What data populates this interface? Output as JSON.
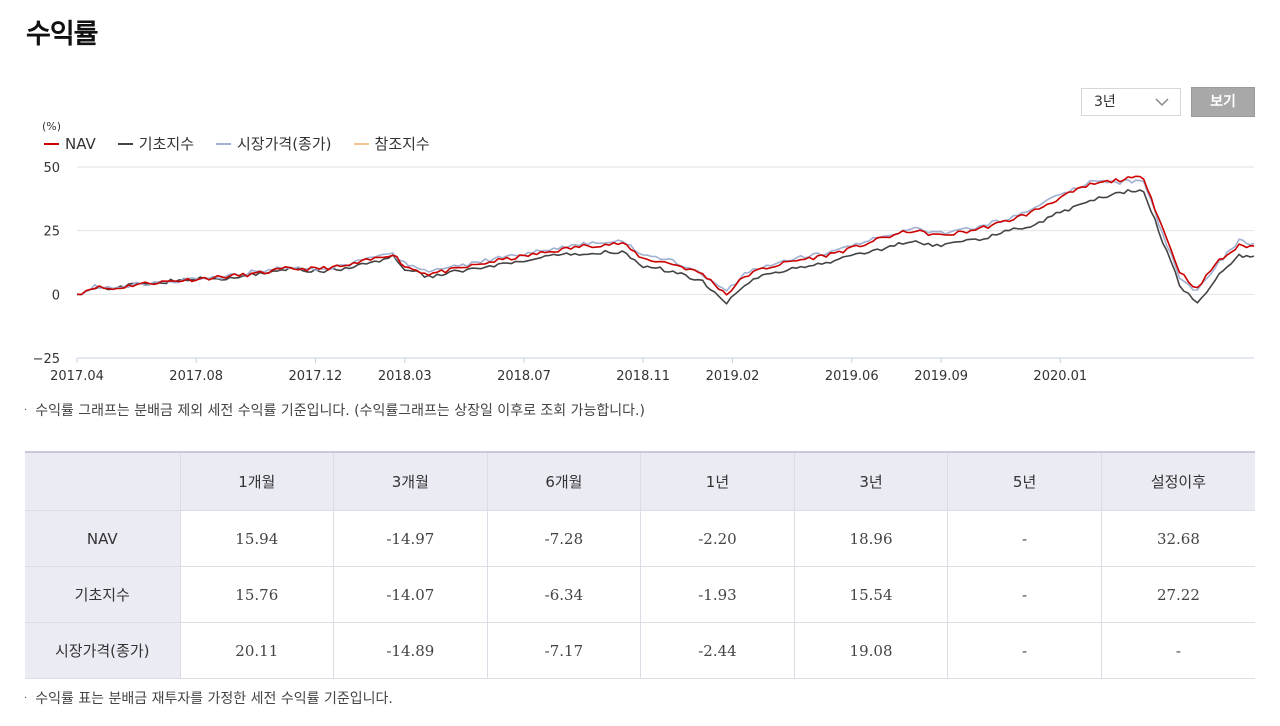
{
  "page": {
    "title": "수익률"
  },
  "controls": {
    "period_value": "3년",
    "view_button": "보기"
  },
  "notes": {
    "graph_note": "수익률 그래프는 분배금 제외 세전 수익률 기준입니다. (수익률그래프는 상장일 이후로 조회 가능합니다.)",
    "table_note": "수익률 표는 분배금 재투자를 가정한 세전 수익률 기준입니다."
  },
  "chart_data": {
    "type": "line",
    "unit_label": "(%)",
    "ylim": [
      -25,
      50
    ],
    "y_ticks": [
      "50",
      "25",
      "0",
      "-25"
    ],
    "x_ticks": [
      "2017.04",
      "2017.08",
      "2017.12",
      "2018.03",
      "2018.07",
      "2018.11",
      "2019.02",
      "2019.06",
      "2019.09",
      "2020.01"
    ],
    "x_tick_months": [
      0,
      4,
      8,
      11,
      15,
      19,
      22,
      26,
      29,
      33
    ],
    "x_range_months": [
      0,
      39.5
    ],
    "grid": true,
    "legend_position": "top-left",
    "series": [
      {
        "name": "NAV",
        "color": "#cc0000",
        "points": [
          [
            0,
            0
          ],
          [
            0.6,
            3
          ],
          [
            1.2,
            2
          ],
          [
            2,
            4
          ],
          [
            3,
            5
          ],
          [
            4,
            6
          ],
          [
            5,
            7
          ],
          [
            6,
            8
          ],
          [
            7,
            10
          ],
          [
            8,
            10
          ],
          [
            9,
            11
          ],
          [
            10,
            14
          ],
          [
            10.6,
            16
          ],
          [
            11,
            11
          ],
          [
            11.8,
            8
          ],
          [
            12.8,
            10
          ],
          [
            14,
            13
          ],
          [
            15,
            15
          ],
          [
            16,
            17
          ],
          [
            17,
            19
          ],
          [
            18.3,
            20
          ],
          [
            19,
            14
          ],
          [
            20,
            12
          ],
          [
            21,
            8
          ],
          [
            21.8,
            0
          ],
          [
            22.4,
            7
          ],
          [
            23,
            10
          ],
          [
            24,
            13
          ],
          [
            25,
            15
          ],
          [
            26,
            18
          ],
          [
            27,
            22
          ],
          [
            28,
            25
          ],
          [
            29,
            23
          ],
          [
            30,
            25
          ],
          [
            31,
            28
          ],
          [
            32,
            32
          ],
          [
            33,
            38
          ],
          [
            34,
            43
          ],
          [
            35,
            45
          ],
          [
            35.8,
            46
          ],
          [
            36.3,
            30
          ],
          [
            37,
            9
          ],
          [
            37.6,
            2
          ],
          [
            38.2,
            12
          ],
          [
            39,
            19
          ],
          [
            39.5,
            19
          ]
        ]
      },
      {
        "name": "기초지수",
        "color": "#444444",
        "points": [
          [
            0,
            0
          ],
          [
            0.6,
            3
          ],
          [
            1.2,
            2
          ],
          [
            2,
            4
          ],
          [
            3,
            5
          ],
          [
            4,
            6
          ],
          [
            5,
            6
          ],
          [
            6,
            8
          ],
          [
            7,
            10
          ],
          [
            8,
            9
          ],
          [
            9,
            10
          ],
          [
            10,
            13
          ],
          [
            10.6,
            15
          ],
          [
            11,
            10
          ],
          [
            11.8,
            7
          ],
          [
            12.8,
            9
          ],
          [
            14,
            11
          ],
          [
            15,
            13
          ],
          [
            16,
            15
          ],
          [
            17,
            16
          ],
          [
            18.3,
            17
          ],
          [
            19,
            11
          ],
          [
            20,
            9
          ],
          [
            21,
            5
          ],
          [
            21.8,
            -3
          ],
          [
            22.4,
            4
          ],
          [
            23,
            7
          ],
          [
            24,
            10
          ],
          [
            25,
            12
          ],
          [
            26,
            15
          ],
          [
            27,
            18
          ],
          [
            28,
            21
          ],
          [
            29,
            19
          ],
          [
            30,
            21
          ],
          [
            31,
            24
          ],
          [
            32,
            27
          ],
          [
            33,
            32
          ],
          [
            34,
            37
          ],
          [
            35,
            40
          ],
          [
            35.8,
            41
          ],
          [
            36.3,
            25
          ],
          [
            37,
            4
          ],
          [
            37.6,
            -4
          ],
          [
            38.2,
            6
          ],
          [
            39,
            15
          ],
          [
            39.5,
            15
          ]
        ]
      },
      {
        "name": "시장가격(종가)",
        "color": "#9fb0d0",
        "points": [
          [
            0,
            0
          ],
          [
            0.6,
            3
          ],
          [
            1.2,
            2
          ],
          [
            2,
            4
          ],
          [
            3,
            5
          ],
          [
            4,
            6
          ],
          [
            5,
            7
          ],
          [
            6,
            9
          ],
          [
            7,
            11
          ],
          [
            8,
            10
          ],
          [
            9,
            11
          ],
          [
            10,
            15
          ],
          [
            10.6,
            16
          ],
          [
            11,
            12
          ],
          [
            11.8,
            9
          ],
          [
            12.8,
            11
          ],
          [
            14,
            14
          ],
          [
            15,
            16
          ],
          [
            16,
            18
          ],
          [
            17,
            20
          ],
          [
            18.3,
            21
          ],
          [
            19,
            15
          ],
          [
            20,
            13
          ],
          [
            21,
            8
          ],
          [
            21.8,
            1
          ],
          [
            22.4,
            8
          ],
          [
            23,
            11
          ],
          [
            24,
            14
          ],
          [
            25,
            16
          ],
          [
            26,
            19
          ],
          [
            27,
            23
          ],
          [
            28,
            26
          ],
          [
            29,
            24
          ],
          [
            30,
            26
          ],
          [
            31,
            29
          ],
          [
            32,
            33
          ],
          [
            33,
            39
          ],
          [
            34,
            44
          ],
          [
            35,
            44
          ],
          [
            35.8,
            45
          ],
          [
            36.3,
            28
          ],
          [
            37,
            7
          ],
          [
            37.6,
            1
          ],
          [
            38.2,
            11
          ],
          [
            39,
            21
          ],
          [
            39.5,
            20
          ]
        ]
      },
      {
        "name": "참조지수",
        "color": "#f5c58a",
        "points": []
      }
    ]
  },
  "returns_table": {
    "columns": [
      "",
      "1개월",
      "3개월",
      "6개월",
      "1년",
      "3년",
      "5년",
      "설정이후"
    ],
    "rows": [
      {
        "label": "NAV",
        "values": [
          "15.94",
          "-14.97",
          "-7.28",
          "-2.20",
          "18.96",
          "-",
          "32.68"
        ]
      },
      {
        "label": "기초지수",
        "values": [
          "15.76",
          "-14.07",
          "-6.34",
          "-1.93",
          "15.54",
          "-",
          "27.22"
        ]
      },
      {
        "label": "시장가격(종가)",
        "values": [
          "20.11",
          "-14.89",
          "-7.17",
          "-2.44",
          "19.08",
          "-",
          "-"
        ]
      }
    ]
  }
}
